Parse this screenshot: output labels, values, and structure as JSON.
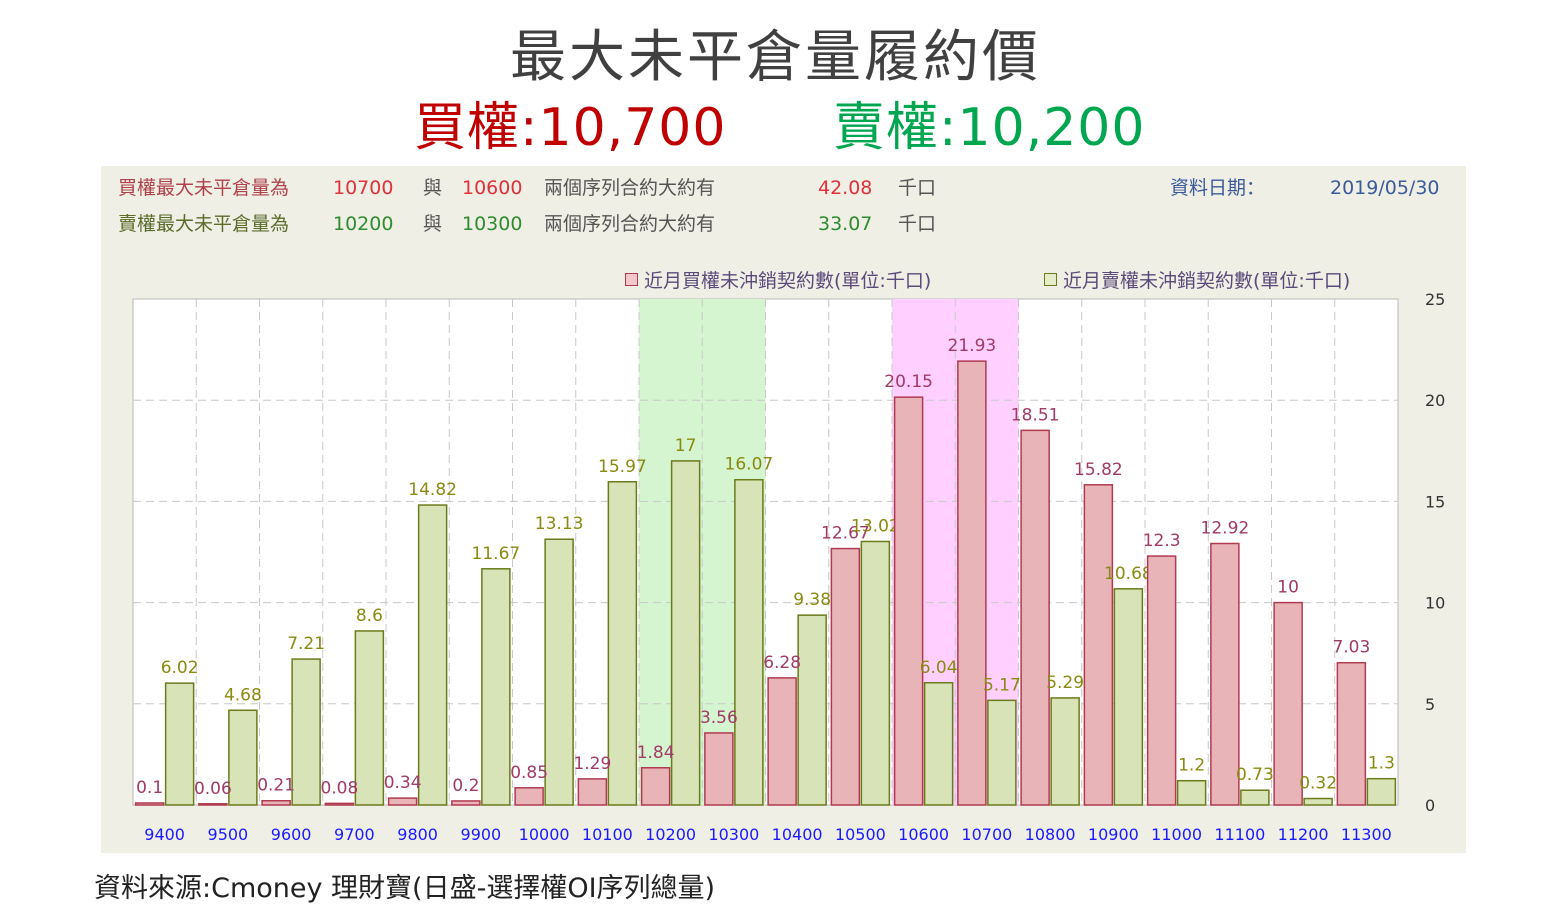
{
  "header": {
    "title": "最大未平倉量履約價",
    "call_label": "買權:10,700",
    "put_label": "賣權:10,200"
  },
  "info": {
    "call_line": {
      "prefix": "買權最大未平倉量為",
      "strike1": "10700",
      "joiner": "與",
      "strike2": "10600",
      "middle": "兩個序列合約大約有",
      "amount": "42.08",
      "unit": "千口"
    },
    "put_line": {
      "prefix": "賣權最大未平倉量為",
      "strike1": "10200",
      "joiner": "與",
      "strike2": "10300",
      "middle": "兩個序列合約大約有",
      "amount": "33.07",
      "unit": "千口"
    },
    "date_label": "資料日期：",
    "date_value": "2019/05/30"
  },
  "source": "資料來源:Cmoney 理財寶(日盛-選擇權OI序列總量)",
  "colors": {
    "call_bar": "#e8b4b8",
    "call_stroke": "#b03a50",
    "put_bar": "#d8e4b8",
    "put_stroke": "#6b7a1a",
    "call_highlight": "#ffd0ff",
    "put_highlight": "#d4f5d0",
    "xtick": "#1a1aff"
  },
  "chart_data": {
    "type": "bar",
    "categories": [
      "9400",
      "9500",
      "9600",
      "9700",
      "9800",
      "9900",
      "10000",
      "10100",
      "10200",
      "10300",
      "10400",
      "10500",
      "10600",
      "10700",
      "10800",
      "10900",
      "11000",
      "11100",
      "11200",
      "11300"
    ],
    "series": [
      {
        "name": "近月買權未沖銷契約數(單位:千口)",
        "values": [
          0.1,
          0.06,
          0.21,
          0.08,
          0.34,
          0.2,
          0.85,
          1.29,
          1.84,
          3.56,
          6.28,
          12.67,
          20.15,
          21.93,
          18.51,
          15.82,
          12.3,
          12.92,
          10,
          7.03
        ]
      },
      {
        "name": "近月賣權未沖銷契約數(單位:千口)",
        "values": [
          6.02,
          4.68,
          7.21,
          8.6,
          14.82,
          11.67,
          13.13,
          15.97,
          17,
          16.07,
          9.38,
          13.02,
          6.04,
          5.17,
          5.29,
          10.68,
          1.2,
          0.73,
          0.32,
          1.3
        ]
      }
    ],
    "yticks": [
      0,
      5,
      10,
      15,
      20,
      25
    ],
    "ylim": [
      0,
      25
    ],
    "grid": true,
    "legend_position": "top-right",
    "y_axis_side": "right",
    "highlight_put": [
      "10200",
      "10300"
    ],
    "highlight_call": [
      "10600",
      "10700"
    ]
  }
}
